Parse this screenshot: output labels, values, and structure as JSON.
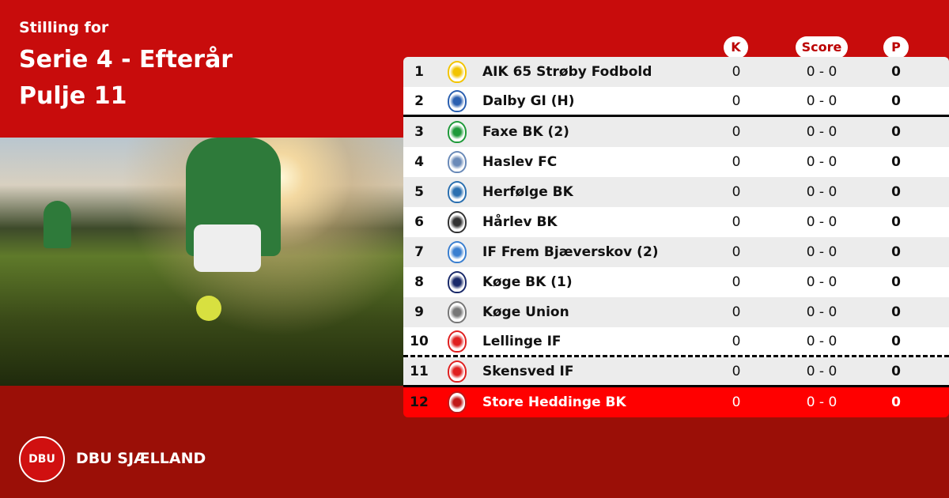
{
  "header": {
    "line1": "Stilling for",
    "line2": "Serie 4 - Efterår",
    "line3": "Pulje 11"
  },
  "columns": {
    "k": "K",
    "score": "Score",
    "p": "P"
  },
  "rows": [
    {
      "pos": "1",
      "name": "AIK 65 Strøby Fodbold",
      "k": "0",
      "score": "0 - 0",
      "p": "0",
      "logo_color": "#f2c400"
    },
    {
      "pos": "2",
      "name": "Dalby GI (H)",
      "k": "0",
      "score": "0 - 0",
      "p": "0",
      "logo_color": "#2a5fb0"
    },
    {
      "pos": "3",
      "name": "Faxe BK (2)",
      "k": "0",
      "score": "0 - 0",
      "p": "0",
      "logo_color": "#1f9a3a"
    },
    {
      "pos": "4",
      "name": "Haslev FC",
      "k": "0",
      "score": "0 - 0",
      "p": "0",
      "logo_color": "#6a8ab8"
    },
    {
      "pos": "5",
      "name": "Herfølge BK",
      "k": "0",
      "score": "0 - 0",
      "p": "0",
      "logo_color": "#2a6fb0"
    },
    {
      "pos": "6",
      "name": "Hårlev BK",
      "k": "0",
      "score": "0 - 0",
      "p": "0",
      "logo_color": "#333333"
    },
    {
      "pos": "7",
      "name": "IF Frem Bjæverskov (2)",
      "k": "0",
      "score": "0 - 0",
      "p": "0",
      "logo_color": "#3a7fd0"
    },
    {
      "pos": "8",
      "name": "Køge BK (1)",
      "k": "0",
      "score": "0 - 0",
      "p": "0",
      "logo_color": "#1a2a6a"
    },
    {
      "pos": "9",
      "name": "Køge Union",
      "k": "0",
      "score": "0 - 0",
      "p": "0",
      "logo_color": "#777777"
    },
    {
      "pos": "10",
      "name": "Lellinge IF",
      "k": "0",
      "score": "0 - 0",
      "p": "0",
      "logo_color": "#e02020"
    },
    {
      "pos": "11",
      "name": "Skensved IF",
      "k": "0",
      "score": "0 - 0",
      "p": "0",
      "logo_color": "#e02020"
    },
    {
      "pos": "12",
      "name": "Store Heddinge BK",
      "k": "0",
      "score": "0 - 0",
      "p": "0",
      "logo_color": "#c01818"
    }
  ],
  "highlight_color": "#ff0000",
  "brand": {
    "logo_text": "DBU",
    "name": "DBU SJÆLLAND"
  }
}
